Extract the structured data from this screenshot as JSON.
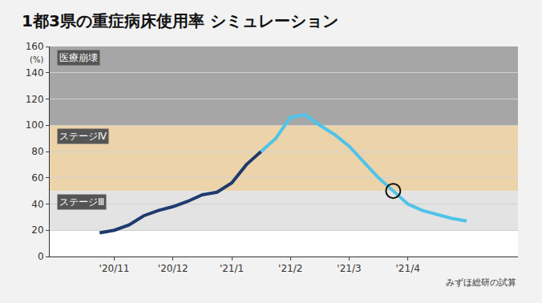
{
  "chart_data": {
    "type": "line",
    "title": "1都3県の重症病床使用率 シミュレーション",
    "ylabel": "(%)",
    "source": "みずほ総研の試算",
    "categories": [
      null,
      "'20/11",
      null,
      null,
      null,
      "'20/12",
      null,
      null,
      null,
      "'21/1",
      null,
      null,
      null,
      "'21/2",
      null,
      null,
      null,
      "'21/3",
      null,
      null,
      null,
      "'21/4",
      null,
      null,
      null,
      null
    ],
    "series": [
      {
        "color": "#1f3a6e",
        "values": [
          18,
          20,
          24,
          31,
          35,
          38,
          42,
          47,
          49,
          56,
          70,
          80,
          null,
          null,
          null,
          null,
          null,
          null,
          null,
          null,
          null,
          null,
          null,
          null,
          null,
          null
        ]
      },
      {
        "color": "#4fc3e8",
        "values": [
          null,
          null,
          null,
          null,
          null,
          null,
          null,
          null,
          null,
          null,
          null,
          80,
          90,
          106,
          108,
          100,
          93,
          84,
          72,
          60,
          50,
          40,
          35,
          32,
          29,
          27
        ]
      },
      {
        "type": "scatter",
        "marker": "circle-open",
        "color": "#111111",
        "values": [
          null,
          null,
          null,
          null,
          null,
          null,
          null,
          null,
          null,
          null,
          null,
          null,
          null,
          null,
          null,
          null,
          null,
          null,
          null,
          null,
          50,
          null,
          null,
          null,
          null,
          null
        ]
      }
    ],
    "bands": [
      {
        "label": "医療崩壊",
        "from": 100,
        "to": 160,
        "color": "#a6a6a6"
      },
      {
        "label": "ステージⅣ",
        "from": 50,
        "to": 100,
        "color": "#ecd3aa"
      },
      {
        "label": "ステージⅢ",
        "from": 20,
        "to": 50,
        "color": "#e3e3e3"
      }
    ],
    "ylim": [
      0,
      160
    ],
    "yticks": [
      0,
      20,
      40,
      60,
      80,
      100,
      120,
      140,
      160
    ],
    "grid": true
  }
}
